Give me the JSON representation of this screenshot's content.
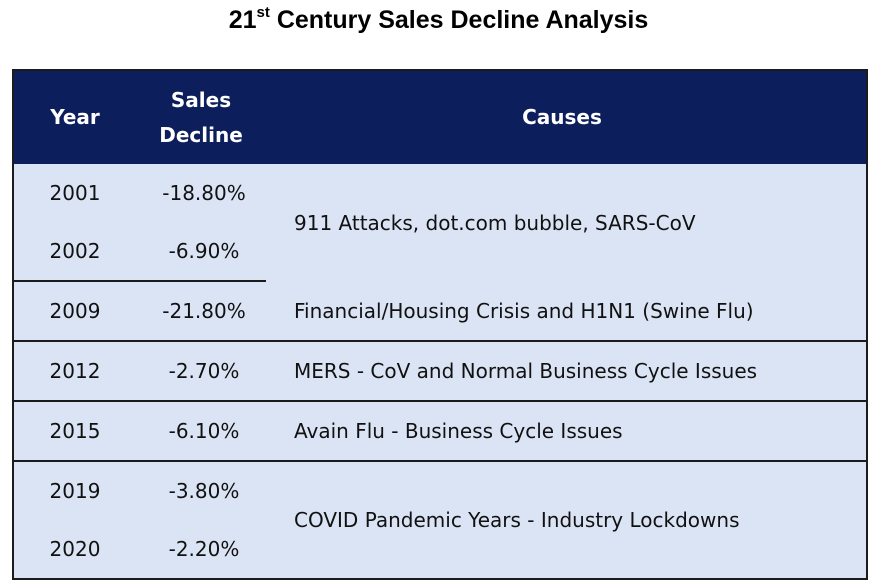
{
  "title": {
    "prefix": "21",
    "superscript": "st",
    "suffix": " Century Sales Decline Analysis"
  },
  "table": {
    "headers": {
      "year": "Year",
      "sales_line1": "Sales",
      "sales_line2": "Decline",
      "causes": "Causes"
    },
    "rows": [
      {
        "year": "2001",
        "decline": "-18.80%"
      },
      {
        "year": "2002",
        "decline": "-6.90%"
      },
      {
        "year": "2009",
        "decline": "-21.80%"
      },
      {
        "year": "2012",
        "decline": "-2.70%"
      },
      {
        "year": "2015",
        "decline": "-6.10%"
      },
      {
        "year": "2019",
        "decline": "-3.80%"
      },
      {
        "year": "2020",
        "decline": "-2.20%"
      }
    ],
    "causes": [
      "911 Attacks, dot.com bubble, SARS-CoV",
      "Financial/Housing Crisis and H1N1 (Swine Flu)",
      "MERS - CoV and Normal Business Cycle Issues",
      "Avain Flu - Business Cycle Issues",
      "COVID Pandemic Years - Industry Lockdowns"
    ]
  },
  "colors": {
    "header_bg": "#0c1e5b",
    "header_text": "#ffffff",
    "row_bg": "#dbe4f4",
    "border": "#1b1b1b"
  }
}
